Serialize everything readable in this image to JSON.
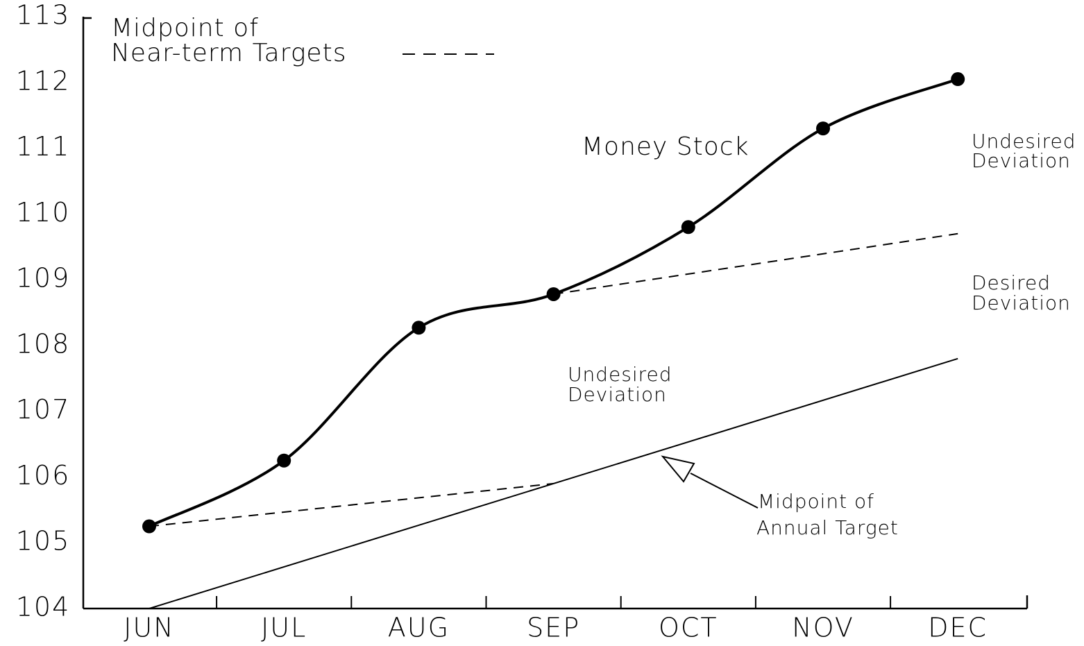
{
  "chart_data": {
    "type": "line",
    "categories": [
      "JUN",
      "JUL",
      "AUG",
      "SEP",
      "OCT",
      "NOV",
      "DEC"
    ],
    "ylim": [
      104,
      113
    ],
    "yticks": [
      104,
      105,
      106,
      107,
      108,
      109,
      110,
      111,
      112,
      113
    ],
    "series": [
      {
        "name": "Money Stock",
        "color": "#000000",
        "style": "smooth",
        "markers": true,
        "values": [
          105.25,
          106.25,
          108.27,
          108.78,
          109.8,
          111.3,
          112.05
        ]
      },
      {
        "color": "#000000",
        "style": "dashed",
        "values": [
          105.25,
          null,
          null,
          105.9,
          null,
          null,
          null
        ]
      },
      {
        "color": "#000000",
        "style": "dashed",
        "values": [
          null,
          null,
          null,
          108.78,
          null,
          null,
          109.7
        ]
      },
      {
        "color": "#000000",
        "style": "solid",
        "values": [
          104.0,
          null,
          null,
          null,
          null,
          null,
          107.8
        ]
      }
    ],
    "legend_label": [
      "Midpoint of",
      "Near-term Targets"
    ],
    "annotations": [
      {
        "lines": [
          "Undesired",
          "Deviation"
        ]
      },
      {
        "lines": [
          "Desired",
          "Deviation"
        ]
      },
      {
        "lines": [
          "Undesired",
          "Deviation"
        ]
      },
      {
        "lines": [
          "Midpoint of",
          "Annual Target"
        ]
      }
    ]
  }
}
